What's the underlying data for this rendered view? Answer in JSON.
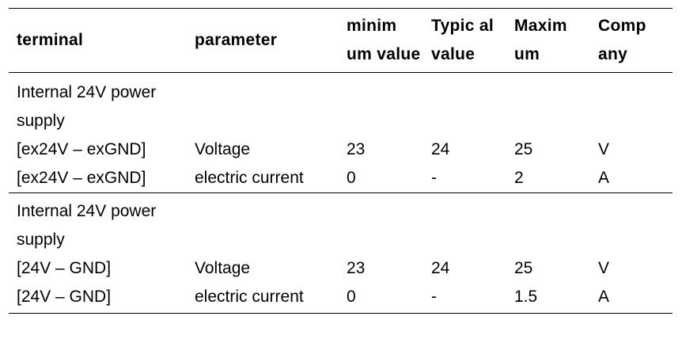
{
  "table": {
    "headers": {
      "terminal": "terminal",
      "parameter": "parameter",
      "minimum": "minim um value",
      "typical": "Typic al value",
      "maximum": "Maxim um",
      "company": "Comp any"
    },
    "groups": [
      {
        "title": "Internal 24V power supply",
        "rows": [
          {
            "terminal": "[ex24V – exGND]",
            "parameter": "Voltage",
            "min": "23",
            "typ": "24",
            "max": "25",
            "unit": "V"
          },
          {
            "terminal": "[ex24V – exGND]",
            "parameter": "electric current",
            "min": "0",
            "typ": "-",
            "max": "2",
            "unit": "A"
          }
        ]
      },
      {
        "title": "Internal 24V power supply",
        "rows": [
          {
            "terminal": "[24V – GND]",
            "parameter": "Voltage",
            "min": "23",
            "typ": "24",
            "max": "25",
            "unit": "V"
          },
          {
            "terminal": "[24V – GND]",
            "parameter": "electric current",
            "min": "0",
            "typ": "-",
            "max": "1.5",
            "unit": "A"
          }
        ]
      }
    ]
  }
}
